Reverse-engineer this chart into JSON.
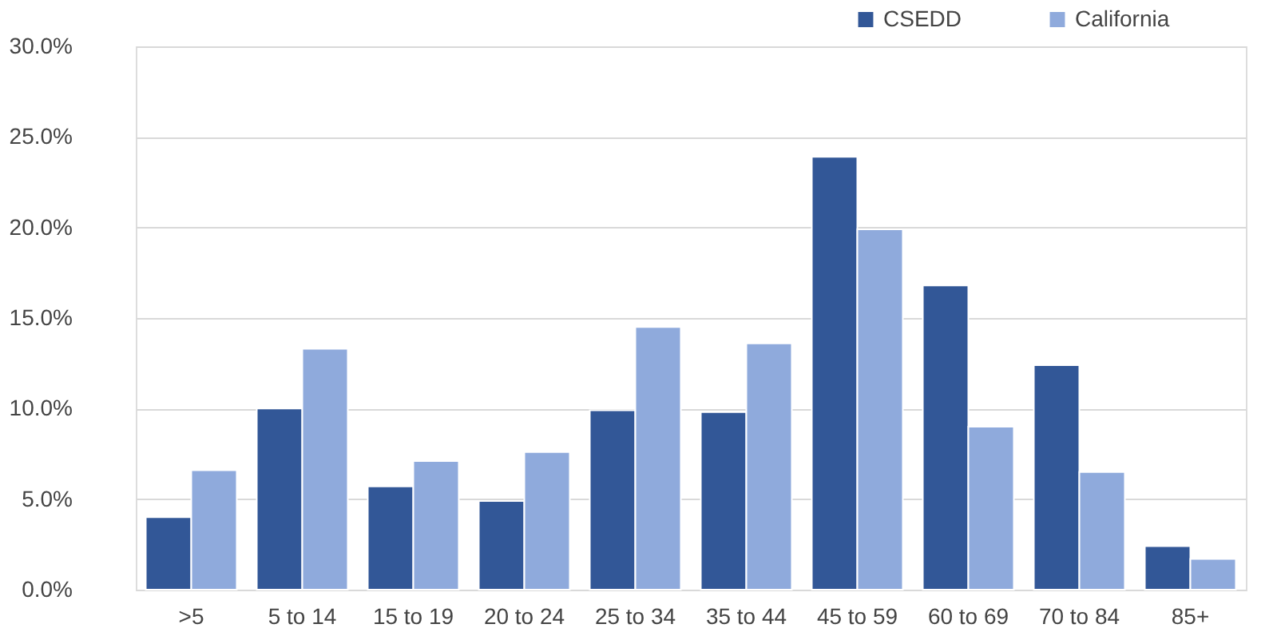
{
  "chart_data": {
    "type": "bar",
    "categories": [
      ">5",
      "5 to 14",
      "15 to 19",
      "20 to 24",
      "25 to 34",
      "35 to 44",
      "45 to 59",
      "60 to 69",
      "70 to 84",
      "85+"
    ],
    "series": [
      {
        "name": "CSEDD",
        "color": "#325797",
        "values": [
          4.0,
          10.0,
          5.7,
          4.9,
          9.9,
          9.8,
          23.9,
          16.8,
          12.4,
          2.4
        ]
      },
      {
        "name": "California",
        "color": "#8faadc",
        "values": [
          6.6,
          13.3,
          7.1,
          7.6,
          14.5,
          13.6,
          19.9,
          9.0,
          6.5,
          1.7
        ]
      }
    ],
    "ylim": [
      0,
      30
    ],
    "yticks": [
      {
        "value": 0,
        "label": "0.0%"
      },
      {
        "value": 5,
        "label": "5.0%"
      },
      {
        "value": 10,
        "label": "10.0%"
      },
      {
        "value": 15,
        "label": "15.0%"
      },
      {
        "value": 20,
        "label": "20.0%"
      },
      {
        "value": 25,
        "label": "25.0%"
      },
      {
        "value": 30,
        "label": "30.0%"
      }
    ],
    "grid": "y",
    "legend": "top right"
  }
}
